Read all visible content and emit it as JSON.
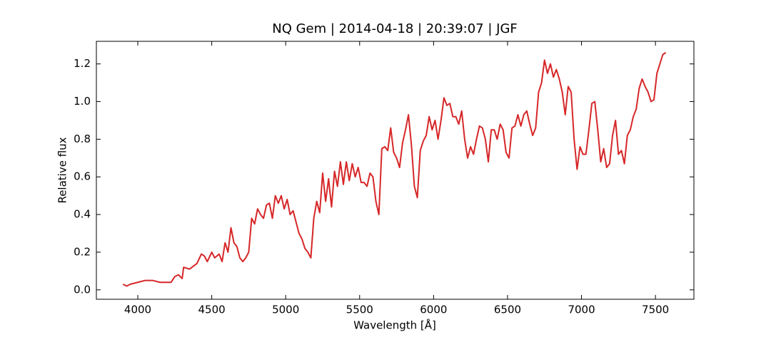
{
  "chart_data": {
    "type": "line",
    "title": "NQ Gem | 2014-04-18 | 20:39:07 | JGF",
    "x_label": "Wavelength [Å]",
    "y_label": "Relative flux",
    "x": [
      3900,
      3925,
      3950,
      4000,
      4050,
      4075,
      4100,
      4150,
      4200,
      4225,
      4250,
      4275,
      4300,
      4310,
      4350,
      4400,
      4430,
      4450,
      4470,
      4500,
      4520,
      4550,
      4570,
      4590,
      4610,
      4630,
      4650,
      4670,
      4690,
      4710,
      4730,
      4750,
      4770,
      4790,
      4810,
      4830,
      4850,
      4870,
      4890,
      4910,
      4930,
      4950,
      4970,
      4990,
      5010,
      5030,
      5050,
      5070,
      5090,
      5110,
      5130,
      5150,
      5170,
      5190,
      5210,
      5230,
      5250,
      5270,
      5290,
      5310,
      5330,
      5350,
      5370,
      5390,
      5410,
      5430,
      5450,
      5470,
      5490,
      5510,
      5530,
      5550,
      5570,
      5590,
      5610,
      5630,
      5650,
      5670,
      5690,
      5710,
      5730,
      5750,
      5770,
      5790,
      5810,
      5830,
      5850,
      5870,
      5890,
      5910,
      5930,
      5950,
      5970,
      5990,
      6010,
      6030,
      6050,
      6070,
      6090,
      6110,
      6130,
      6150,
      6170,
      6190,
      6210,
      6230,
      6250,
      6270,
      6290,
      6310,
      6330,
      6350,
      6370,
      6390,
      6410,
      6430,
      6450,
      6470,
      6490,
      6510,
      6530,
      6550,
      6570,
      6590,
      6610,
      6630,
      6650,
      6670,
      6690,
      6710,
      6730,
      6750,
      6770,
      6790,
      6810,
      6830,
      6850,
      6870,
      6890,
      6910,
      6930,
      6950,
      6970,
      6990,
      7010,
      7030,
      7050,
      7070,
      7090,
      7110,
      7130,
      7150,
      7170,
      7190,
      7210,
      7230,
      7250,
      7270,
      7290,
      7310,
      7330,
      7350,
      7370,
      7390,
      7410,
      7430,
      7450,
      7470,
      7490,
      7510,
      7530,
      7550,
      7570
    ],
    "series": [
      {
        "name": "NQ Gem",
        "color": "#d62728",
        "values": [
          0.03,
          0.02,
          0.03,
          0.04,
          0.05,
          0.05,
          0.05,
          0.04,
          0.04,
          0.04,
          0.07,
          0.08,
          0.06,
          0.12,
          0.11,
          0.14,
          0.19,
          0.18,
          0.15,
          0.2,
          0.17,
          0.19,
          0.15,
          0.25,
          0.2,
          0.33,
          0.25,
          0.23,
          0.17,
          0.15,
          0.17,
          0.2,
          0.38,
          0.35,
          0.43,
          0.4,
          0.38,
          0.45,
          0.46,
          0.38,
          0.5,
          0.46,
          0.5,
          0.43,
          0.48,
          0.4,
          0.42,
          0.36,
          0.3,
          0.27,
          0.22,
          0.2,
          0.17,
          0.38,
          0.47,
          0.41,
          0.62,
          0.47,
          0.59,
          0.44,
          0.63,
          0.55,
          0.68,
          0.56,
          0.68,
          0.58,
          0.67,
          0.6,
          0.65,
          0.57,
          0.57,
          0.55,
          0.62,
          0.6,
          0.47,
          0.4,
          0.75,
          0.76,
          0.74,
          0.86,
          0.73,
          0.7,
          0.65,
          0.78,
          0.85,
          0.93,
          0.77,
          0.55,
          0.49,
          0.74,
          0.79,
          0.82,
          0.92,
          0.85,
          0.9,
          0.8,
          0.9,
          1.02,
          0.98,
          0.99,
          0.92,
          0.92,
          0.88,
          0.95,
          0.8,
          0.7,
          0.76,
          0.72,
          0.8,
          0.87,
          0.86,
          0.8,
          0.68,
          0.85,
          0.85,
          0.8,
          0.88,
          0.85,
          0.73,
          0.7,
          0.86,
          0.87,
          0.93,
          0.87,
          0.93,
          0.95,
          0.88,
          0.82,
          0.86,
          1.05,
          1.1,
          1.22,
          1.15,
          1.2,
          1.13,
          1.17,
          1.12,
          1.05,
          0.93,
          1.08,
          1.05,
          0.8,
          0.64,
          0.76,
          0.72,
          0.72,
          0.85,
          0.99,
          1.0,
          0.85,
          0.68,
          0.75,
          0.65,
          0.67,
          0.82,
          0.9,
          0.72,
          0.74,
          0.67,
          0.82,
          0.85,
          0.92,
          0.96,
          1.07,
          1.12,
          1.08,
          1.05,
          1.0,
          1.01,
          1.15,
          1.2,
          1.25,
          1.26
        ]
      }
    ],
    "xlim": [
      3720,
      7760
    ],
    "xticks": [
      4000,
      4500,
      5000,
      5500,
      6000,
      6500,
      7000,
      7500
    ],
    "ylim": [
      -0.05,
      1.32
    ],
    "yticks": [
      {
        "value": 0,
        "label": "0.0"
      },
      0.2,
      0.4,
      0.6,
      0.8,
      {
        "value": 1,
        "label": "1.0"
      },
      1.2
    ]
  }
}
